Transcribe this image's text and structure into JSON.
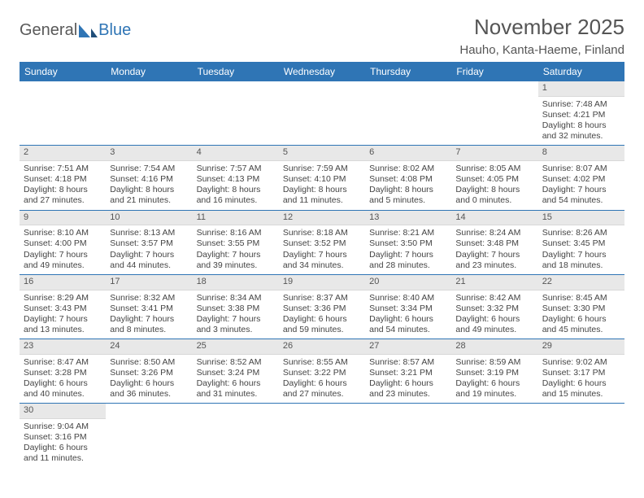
{
  "logo": {
    "textA": "General",
    "textB": "Blue"
  },
  "title": "November 2025",
  "location": "Hauho, Kanta-Haeme, Finland",
  "colors": {
    "headerBg": "#2f75b5",
    "headerText": "#ffffff",
    "dayHeaderBg": "#e8e8e8"
  },
  "weekdays": [
    "Sunday",
    "Monday",
    "Tuesday",
    "Wednesday",
    "Thursday",
    "Friday",
    "Saturday"
  ],
  "weeks": [
    [
      null,
      null,
      null,
      null,
      null,
      null,
      {
        "n": "1",
        "sr": "Sunrise: 7:48 AM",
        "ss": "Sunset: 4:21 PM",
        "dl": "Daylight: 8 hours and 32 minutes."
      }
    ],
    [
      {
        "n": "2",
        "sr": "Sunrise: 7:51 AM",
        "ss": "Sunset: 4:18 PM",
        "dl": "Daylight: 8 hours and 27 minutes."
      },
      {
        "n": "3",
        "sr": "Sunrise: 7:54 AM",
        "ss": "Sunset: 4:16 PM",
        "dl": "Daylight: 8 hours and 21 minutes."
      },
      {
        "n": "4",
        "sr": "Sunrise: 7:57 AM",
        "ss": "Sunset: 4:13 PM",
        "dl": "Daylight: 8 hours and 16 minutes."
      },
      {
        "n": "5",
        "sr": "Sunrise: 7:59 AM",
        "ss": "Sunset: 4:10 PM",
        "dl": "Daylight: 8 hours and 11 minutes."
      },
      {
        "n": "6",
        "sr": "Sunrise: 8:02 AM",
        "ss": "Sunset: 4:08 PM",
        "dl": "Daylight: 8 hours and 5 minutes."
      },
      {
        "n": "7",
        "sr": "Sunrise: 8:05 AM",
        "ss": "Sunset: 4:05 PM",
        "dl": "Daylight: 8 hours and 0 minutes."
      },
      {
        "n": "8",
        "sr": "Sunrise: 8:07 AM",
        "ss": "Sunset: 4:02 PM",
        "dl": "Daylight: 7 hours and 54 minutes."
      }
    ],
    [
      {
        "n": "9",
        "sr": "Sunrise: 8:10 AM",
        "ss": "Sunset: 4:00 PM",
        "dl": "Daylight: 7 hours and 49 minutes."
      },
      {
        "n": "10",
        "sr": "Sunrise: 8:13 AM",
        "ss": "Sunset: 3:57 PM",
        "dl": "Daylight: 7 hours and 44 minutes."
      },
      {
        "n": "11",
        "sr": "Sunrise: 8:16 AM",
        "ss": "Sunset: 3:55 PM",
        "dl": "Daylight: 7 hours and 39 minutes."
      },
      {
        "n": "12",
        "sr": "Sunrise: 8:18 AM",
        "ss": "Sunset: 3:52 PM",
        "dl": "Daylight: 7 hours and 34 minutes."
      },
      {
        "n": "13",
        "sr": "Sunrise: 8:21 AM",
        "ss": "Sunset: 3:50 PM",
        "dl": "Daylight: 7 hours and 28 minutes."
      },
      {
        "n": "14",
        "sr": "Sunrise: 8:24 AM",
        "ss": "Sunset: 3:48 PM",
        "dl": "Daylight: 7 hours and 23 minutes."
      },
      {
        "n": "15",
        "sr": "Sunrise: 8:26 AM",
        "ss": "Sunset: 3:45 PM",
        "dl": "Daylight: 7 hours and 18 minutes."
      }
    ],
    [
      {
        "n": "16",
        "sr": "Sunrise: 8:29 AM",
        "ss": "Sunset: 3:43 PM",
        "dl": "Daylight: 7 hours and 13 minutes."
      },
      {
        "n": "17",
        "sr": "Sunrise: 8:32 AM",
        "ss": "Sunset: 3:41 PM",
        "dl": "Daylight: 7 hours and 8 minutes."
      },
      {
        "n": "18",
        "sr": "Sunrise: 8:34 AM",
        "ss": "Sunset: 3:38 PM",
        "dl": "Daylight: 7 hours and 3 minutes."
      },
      {
        "n": "19",
        "sr": "Sunrise: 8:37 AM",
        "ss": "Sunset: 3:36 PM",
        "dl": "Daylight: 6 hours and 59 minutes."
      },
      {
        "n": "20",
        "sr": "Sunrise: 8:40 AM",
        "ss": "Sunset: 3:34 PM",
        "dl": "Daylight: 6 hours and 54 minutes."
      },
      {
        "n": "21",
        "sr": "Sunrise: 8:42 AM",
        "ss": "Sunset: 3:32 PM",
        "dl": "Daylight: 6 hours and 49 minutes."
      },
      {
        "n": "22",
        "sr": "Sunrise: 8:45 AM",
        "ss": "Sunset: 3:30 PM",
        "dl": "Daylight: 6 hours and 45 minutes."
      }
    ],
    [
      {
        "n": "23",
        "sr": "Sunrise: 8:47 AM",
        "ss": "Sunset: 3:28 PM",
        "dl": "Daylight: 6 hours and 40 minutes."
      },
      {
        "n": "24",
        "sr": "Sunrise: 8:50 AM",
        "ss": "Sunset: 3:26 PM",
        "dl": "Daylight: 6 hours and 36 minutes."
      },
      {
        "n": "25",
        "sr": "Sunrise: 8:52 AM",
        "ss": "Sunset: 3:24 PM",
        "dl": "Daylight: 6 hours and 31 minutes."
      },
      {
        "n": "26",
        "sr": "Sunrise: 8:55 AM",
        "ss": "Sunset: 3:22 PM",
        "dl": "Daylight: 6 hours and 27 minutes."
      },
      {
        "n": "27",
        "sr": "Sunrise: 8:57 AM",
        "ss": "Sunset: 3:21 PM",
        "dl": "Daylight: 6 hours and 23 minutes."
      },
      {
        "n": "28",
        "sr": "Sunrise: 8:59 AM",
        "ss": "Sunset: 3:19 PM",
        "dl": "Daylight: 6 hours and 19 minutes."
      },
      {
        "n": "29",
        "sr": "Sunrise: 9:02 AM",
        "ss": "Sunset: 3:17 PM",
        "dl": "Daylight: 6 hours and 15 minutes."
      }
    ],
    [
      {
        "n": "30",
        "sr": "Sunrise: 9:04 AM",
        "ss": "Sunset: 3:16 PM",
        "dl": "Daylight: 6 hours and 11 minutes."
      },
      null,
      null,
      null,
      null,
      null,
      null
    ]
  ]
}
